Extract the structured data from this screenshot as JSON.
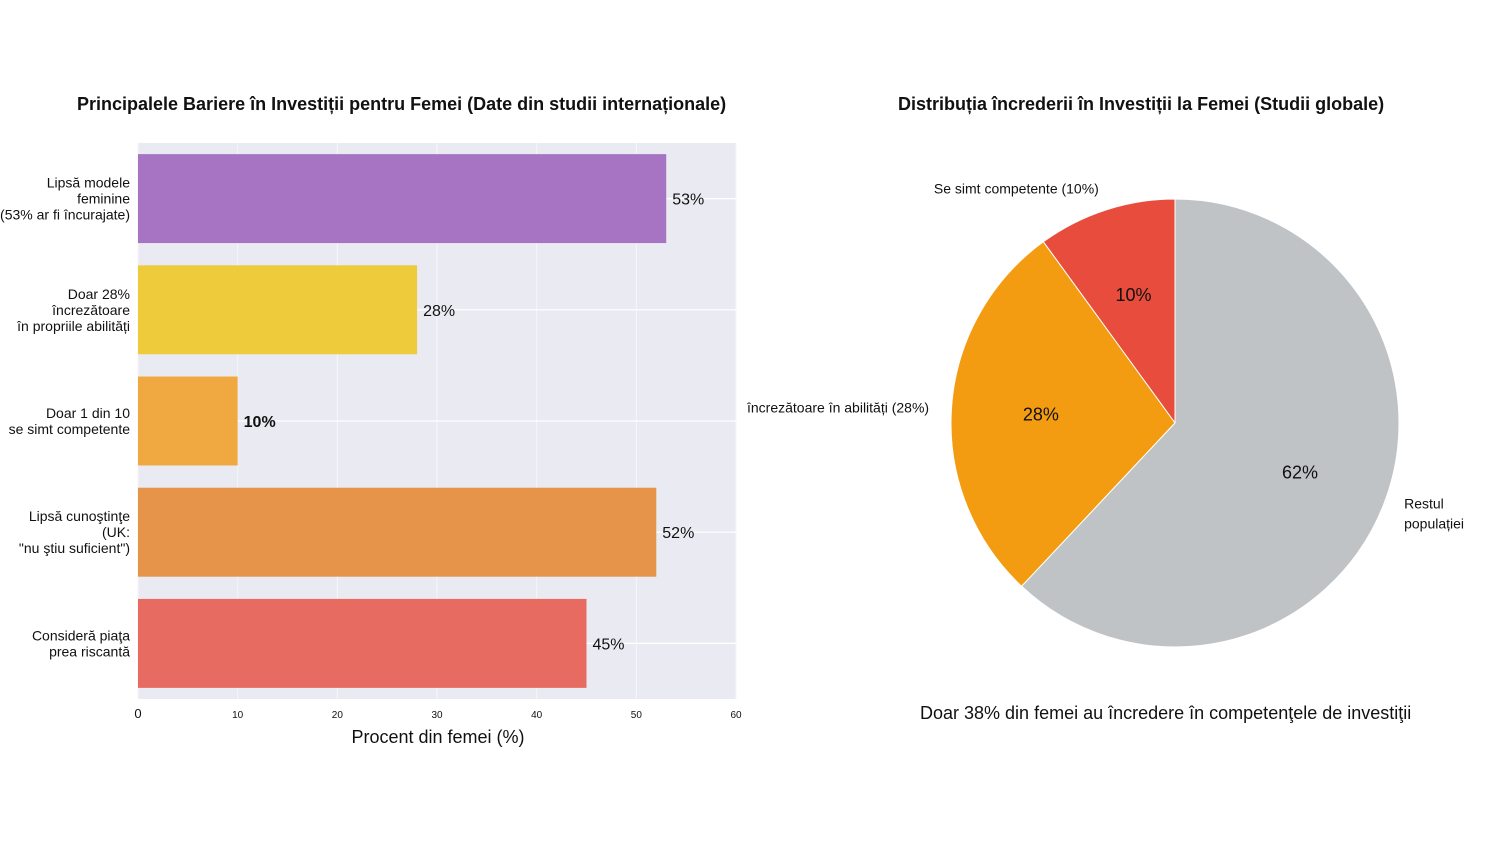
{
  "chart_data": [
    {
      "type": "bar",
      "orientation": "horizontal",
      "title": "Principalele Bariere în Investiții pentru Femei (Date din studii internaționale)",
      "xlabel": "Procent din femei (%)",
      "ylabel": "",
      "xlim": [
        0,
        60
      ],
      "xticks": [
        0,
        10,
        20,
        30,
        40,
        50,
        60
      ],
      "grid": true,
      "categories": [
        [
          "Lipsă modele",
          "feminine",
          "(53% ar fi încurajate)"
        ],
        [
          "Doar 28%",
          "încrezătoare",
          "în propriile abilități"
        ],
        [
          "Doar 1 din 10",
          "se simt competente"
        ],
        [
          "Lipsă cunoştinţe",
          "(UK:",
          "\"nu ştiu suficient\")"
        ],
        [
          "Consideră piaţa",
          "prea riscantă"
        ]
      ],
      "values": [
        53,
        28,
        10,
        52,
        45
      ],
      "value_labels": [
        "53%",
        "28%",
        "10%",
        "52%",
        "45%"
      ],
      "colors": [
        "#a774c4",
        "#eecb3a",
        "#f0a940",
        "#e5944a",
        "#e76b60"
      ]
    },
    {
      "type": "pie",
      "title": "Distribuția încrederii în Investiții la Femei (Studii globale)",
      "slices": [
        {
          "label": "Se simt competente (10%)",
          "value": 10,
          "pct_label": "10%",
          "color": "#e74c3c"
        },
        {
          "label": "încrezătoare în abilități (28%)",
          "value": 28,
          "pct_label": "28%",
          "color": "#f39c12"
        },
        {
          "label": "Restul populației",
          "value": 62,
          "pct_label": "62%",
          "color": "#bfc3c6"
        }
      ],
      "start_angle": 90,
      "direction": "counterclockwise",
      "caption": "Doar 38% din femei au încredere în competenţele de investiţii"
    }
  ]
}
